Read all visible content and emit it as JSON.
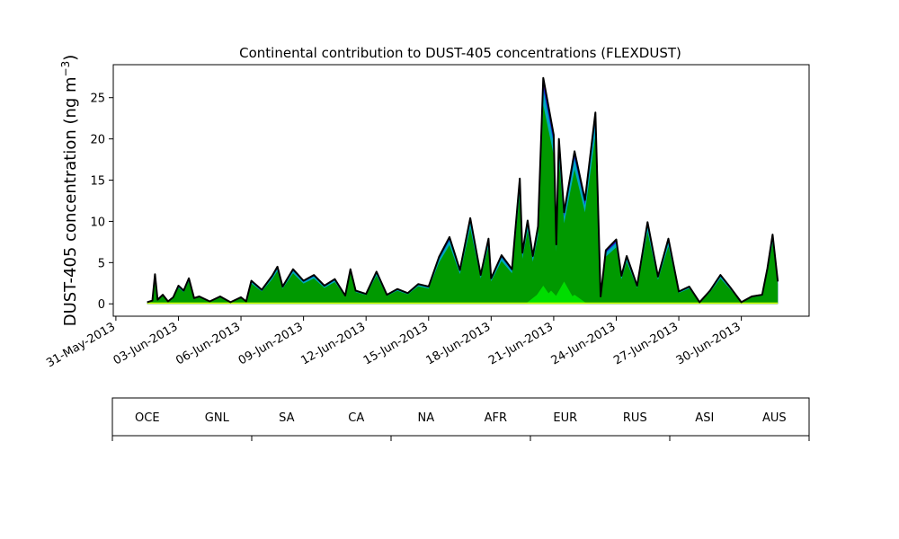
{
  "chart_data": {
    "type": "area",
    "title": "Continental contribution to DUST-405 concentrations (FLEXDUST)",
    "ylabel_prefix": "DUST-405 concentration (ng m",
    "ylabel_sup": "−3",
    "ylabel_suffix": ")",
    "xlabel": "",
    "ylim": [
      -1.5,
      29
    ],
    "yticks": [
      0,
      5,
      10,
      15,
      20,
      25
    ],
    "xlim": [
      "2013-05-30T21:00",
      "2013-07-03T06:00"
    ],
    "xtick_dates": [
      "2013-05-31",
      "2013-06-03",
      "2013-06-06",
      "2013-06-09",
      "2013-06-12",
      "2013-06-15",
      "2013-06-18",
      "2013-06-21",
      "2013-06-24",
      "2013-06-27",
      "2013-06-30"
    ],
    "xtick_labels": [
      "31-May-2013",
      "03-Jun-2013",
      "06-Jun-2013",
      "09-Jun-2013",
      "12-Jun-2013",
      "15-Jun-2013",
      "18-Jun-2013",
      "21-Jun-2013",
      "24-Jun-2013",
      "27-Jun-2013",
      "30-Jun-2013"
    ],
    "total": {
      "name": "AUS",
      "x": [
        "2013-06-01T12:00",
        "2013-06-01T18:00",
        "2013-06-01T21:00",
        "2013-06-02T00:00",
        "2013-06-02T06:00",
        "2013-06-02T12:00",
        "2013-06-02T18:00",
        "2013-06-03T00:00",
        "2013-06-03T06:00",
        "2013-06-03T12:00",
        "2013-06-03T18:00",
        "2013-06-04T00:00",
        "2013-06-04T12:00",
        "2013-06-05T00:00",
        "2013-06-05T12:00",
        "2013-06-06T00:00",
        "2013-06-06T06:00",
        "2013-06-06T12:00",
        "2013-06-07T00:00",
        "2013-06-07T12:00",
        "2013-06-07T18:00",
        "2013-06-08T00:00",
        "2013-06-08T12:00",
        "2013-06-09T00:00",
        "2013-06-09T12:00",
        "2013-06-10T00:00",
        "2013-06-10T12:00",
        "2013-06-11T00:00",
        "2013-06-11T06:00",
        "2013-06-11T12:00",
        "2013-06-12T00:00",
        "2013-06-12T12:00",
        "2013-06-13T00:00",
        "2013-06-13T12:00",
        "2013-06-14T00:00",
        "2013-06-14T12:00",
        "2013-06-15T00:00",
        "2013-06-15T12:00",
        "2013-06-16T00:00",
        "2013-06-16T12:00",
        "2013-06-17T00:00",
        "2013-06-17T12:00",
        "2013-06-17T21:00",
        "2013-06-18T00:00",
        "2013-06-18T12:00",
        "2013-06-19T00:00",
        "2013-06-19T09:00",
        "2013-06-19T12:00",
        "2013-06-19T18:00",
        "2013-06-20T00:00",
        "2013-06-20T06:00",
        "2013-06-20T12:00",
        "2013-06-21T00:00",
        "2013-06-21T03:00",
        "2013-06-21T06:00",
        "2013-06-21T12:00",
        "2013-06-22T00:00",
        "2013-06-22T12:00",
        "2013-06-23T00:00",
        "2013-06-23T06:00",
        "2013-06-23T12:00",
        "2013-06-24T00:00",
        "2013-06-24T06:00",
        "2013-06-24T12:00",
        "2013-06-25T00:00",
        "2013-06-25T12:00",
        "2013-06-26T00:00",
        "2013-06-26T12:00",
        "2013-06-27T00:00",
        "2013-06-27T12:00",
        "2013-06-28T00:00",
        "2013-06-28T12:00",
        "2013-06-29T00:00",
        "2013-06-29T12:00",
        "2013-06-30T00:00",
        "2013-06-30T12:00",
        "2013-07-01T00:00",
        "2013-07-01T06:00",
        "2013-07-01T12:00",
        "2013-07-01T18:00"
      ],
      "values": [
        0.2,
        0.4,
        3.6,
        0.5,
        1.1,
        0.3,
        0.8,
        2.2,
        1.6,
        3.1,
        0.7,
        0.9,
        0.3,
        0.9,
        0.2,
        0.8,
        0.3,
        2.8,
        1.7,
        3.4,
        4.5,
        2.1,
        4.2,
        2.8,
        3.5,
        2.2,
        3.0,
        1.0,
        4.2,
        1.6,
        1.2,
        3.9,
        1.1,
        1.8,
        1.3,
        2.4,
        2.1,
        5.7,
        8.1,
        4.1,
        10.4,
        3.5,
        7.9,
        3.1,
        5.9,
        4.2,
        15.2,
        6.2,
        10.1,
        5.8,
        9.4,
        27.4,
        20.5,
        7.2,
        20.0,
        11.1,
        18.5,
        12.6,
        23.2,
        0.9,
        6.5,
        7.8,
        3.4,
        5.8,
        2.2,
        9.9,
        3.3,
        7.9,
        1.5,
        2.1,
        0.2,
        1.6,
        3.5,
        1.9,
        0.2,
        0.9,
        1.1,
        4.3,
        8.4,
        2.7
      ]
    },
    "afr_fraction": 0.88,
    "na_bumps": [
      {
        "x": "2013-06-20T06:00",
        "value": 1.2
      },
      {
        "x": "2013-06-20T12:00",
        "value": 2.2
      },
      {
        "x": "2013-06-20T21:00",
        "value": 1.6
      },
      {
        "x": "2013-06-21T12:00",
        "value": 2.7
      },
      {
        "x": "2013-06-22T00:00",
        "value": 1.1
      }
    ],
    "legend_position": "colorbar-below",
    "legend": [
      {
        "label": "OCE",
        "color": "#cccccc",
        "text_color": "#000000"
      },
      {
        "label": "GNL",
        "color": "#e80000",
        "text_color": "#000000"
      },
      {
        "label": "SA",
        "color": "#ffaa00",
        "text_color": "#000000"
      },
      {
        "label": "CA",
        "color": "#ccff00",
        "text_color": "#000000"
      },
      {
        "label": "NA",
        "color": "#00dd00",
        "text_color": "#000000"
      },
      {
        "label": "AFR",
        "color": "#009900",
        "text_color": "#000000"
      },
      {
        "label": "EUR",
        "color": "#00aabb",
        "text_color": "#000000"
      },
      {
        "label": "RUS",
        "color": "#0033dd",
        "text_color": "#000000"
      },
      {
        "label": "ASI",
        "color": "#6600aa",
        "text_color": "#000000"
      },
      {
        "label": "AUS",
        "color": "#000000",
        "text_color": "#ffffff"
      }
    ]
  }
}
